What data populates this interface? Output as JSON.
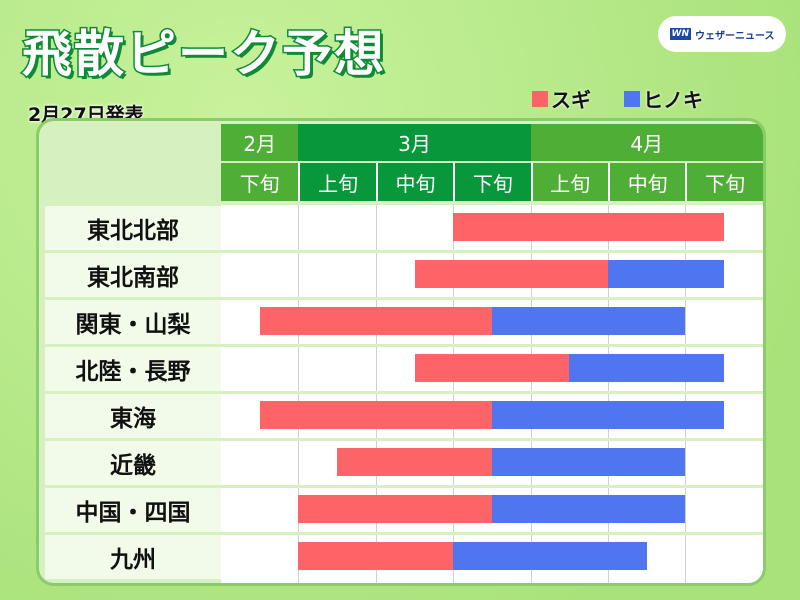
{
  "title": "飛散ピーク予想",
  "date": "2月27日発表",
  "logo": {
    "mark": "WN",
    "text": "ウェザーニュース"
  },
  "legend": [
    {
      "label": "スギ",
      "color": "#fd6467"
    },
    {
      "label": "ヒノキ",
      "color": "#4f76ef"
    }
  ],
  "chart_data": {
    "type": "bar",
    "orientation": "horizontal-range",
    "months": [
      {
        "label": "2月",
        "span": 1,
        "color": "#4fae36"
      },
      {
        "label": "3月",
        "span": 3,
        "color": "#08973a"
      },
      {
        "label": "4月",
        "span": 3,
        "color": "#4fae36"
      }
    ],
    "periods": [
      "2月下旬",
      "3月上旬",
      "3月中旬",
      "3月下旬",
      "4月上旬",
      "4月中旬",
      "4月下旬"
    ],
    "period_labels": [
      "下旬",
      "上旬",
      "中旬",
      "下旬",
      "上旬",
      "中旬",
      "下旬"
    ],
    "categories": [
      "東北北部",
      "東北南部",
      "関東・山梨",
      "北陸・長野",
      "東海",
      "近畿",
      "中国・四国",
      "九州"
    ],
    "series": [
      {
        "name": "スギ",
        "color": "#fd6467",
        "ranges": [
          [
            3.0,
            6.5
          ],
          [
            2.5,
            5.0
          ],
          [
            0.5,
            3.5
          ],
          [
            2.5,
            4.5
          ],
          [
            0.5,
            3.5
          ],
          [
            1.5,
            3.5
          ],
          [
            1.0,
            3.5
          ],
          [
            1.0,
            3.0
          ]
        ]
      },
      {
        "name": "ヒノキ",
        "color": "#4f76ef",
        "ranges": [
          null,
          [
            5.0,
            6.5
          ],
          [
            3.5,
            6.0
          ],
          [
            4.5,
            6.5
          ],
          [
            3.5,
            6.5
          ],
          [
            3.5,
            6.0
          ],
          [
            3.5,
            6.0
          ],
          [
            3.0,
            5.5
          ]
        ]
      }
    ]
  }
}
